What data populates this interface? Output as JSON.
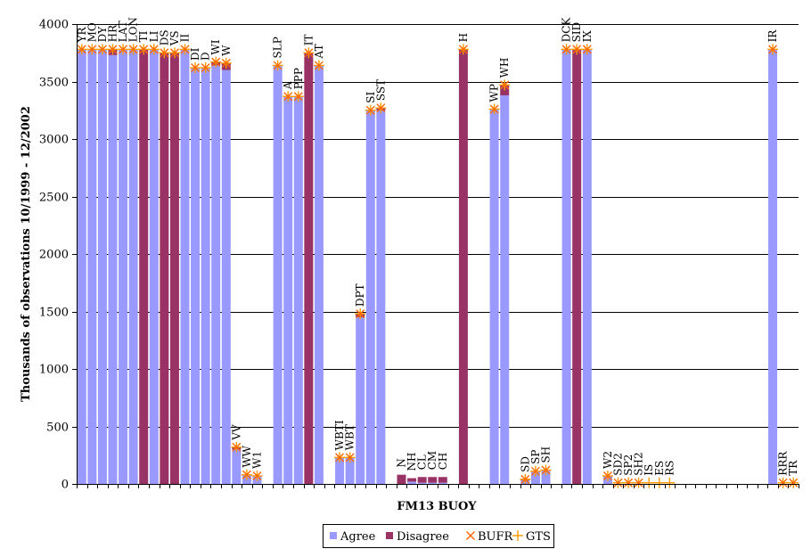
{
  "chart_data": {
    "type": "bar",
    "xlabel": "FM13 BUOY",
    "ylabel": "Thousands of observations 10/1999 - 12/2002",
    "ylim": [
      0,
      4000
    ],
    "yticks": [
      0,
      500,
      1000,
      1500,
      2000,
      2500,
      3000,
      3500,
      4000
    ],
    "grid": true,
    "legend_position": "bottom",
    "colors": {
      "agree": "#9999ff",
      "disagree": "#993366",
      "bufr": "#ff6600",
      "gts": "#ff9900"
    },
    "categories": [
      "YR",
      "MO",
      "DY",
      "HR",
      "LAT",
      "LON",
      "TI",
      "LI",
      "DS",
      "VS",
      "II",
      "DI",
      "D",
      "WI",
      "W",
      "VV",
      "WW",
      "W1",
      "",
      "SLP",
      "A",
      "PPP",
      "IT",
      "AT",
      "",
      "WBTI",
      "WBT",
      "DPT",
      "SI",
      "SST",
      "",
      "N",
      "NH",
      "CL",
      "CM",
      "CH",
      "",
      "H",
      "",
      "",
      "WP",
      "WH",
      "",
      "SD",
      "SP",
      "SH",
      "",
      "DCK",
      "SID",
      "IX",
      "",
      "W2",
      "SD2",
      "SP2",
      "SH2",
      "IS",
      "ES",
      "RS",
      "",
      "",
      "",
      "",
      "",
      "",
      "",
      "",
      "",
      "IR",
      "RRR",
      "TR"
    ],
    "series": [
      {
        "name": "Agree",
        "values": [
          3780,
          3780,
          3780,
          3730,
          3780,
          3780,
          0,
          3780,
          0,
          0,
          3780,
          3620,
          3620,
          3640,
          3600,
          300,
          80,
          70,
          0,
          3640,
          3370,
          3370,
          0,
          3640,
          0,
          230,
          230,
          1450,
          3250,
          3250,
          0,
          0,
          20,
          10,
          10,
          10,
          0,
          0,
          0,
          0,
          3260,
          3380,
          0,
          30,
          110,
          120,
          0,
          3780,
          0,
          3780,
          0,
          70,
          0,
          0,
          0,
          0,
          0,
          0,
          0,
          0,
          0,
          0,
          0,
          0,
          0,
          0,
          0,
          3780,
          0,
          0
        ]
      },
      {
        "name": "Disagree",
        "values": [
          0,
          0,
          0,
          50,
          0,
          0,
          3780,
          0,
          3750,
          3750,
          0,
          0,
          0,
          30,
          60,
          20,
          0,
          0,
          0,
          0,
          0,
          0,
          3750,
          0,
          0,
          0,
          0,
          30,
          0,
          20,
          0,
          80,
          30,
          50,
          50,
          50,
          0,
          3780,
          0,
          0,
          0,
          90,
          0,
          10,
          0,
          0,
          0,
          0,
          3780,
          0,
          0,
          0,
          0,
          0,
          0,
          0,
          0,
          0,
          0,
          0,
          0,
          0,
          0,
          0,
          0,
          0,
          0,
          0,
          0,
          0
        ]
      },
      {
        "name": "BUFR",
        "values": [
          3780,
          3780,
          3780,
          3780,
          3780,
          3780,
          3780,
          3780,
          3750,
          3750,
          3780,
          3620,
          3620,
          3670,
          3660,
          320,
          80,
          70,
          null,
          3640,
          3370,
          3370,
          3750,
          3640,
          null,
          230,
          230,
          1480,
          3250,
          3270,
          null,
          null,
          null,
          null,
          null,
          null,
          null,
          3780,
          null,
          null,
          3260,
          3470,
          null,
          40,
          110,
          120,
          null,
          3780,
          3780,
          3780,
          null,
          70,
          10,
          10,
          10,
          null,
          null,
          null,
          null,
          null,
          null,
          null,
          null,
          null,
          null,
          null,
          null,
          3780,
          10,
          10
        ]
      },
      {
        "name": "GTS",
        "values": [
          3780,
          3780,
          3780,
          3780,
          3780,
          3780,
          3780,
          3780,
          3750,
          3750,
          3780,
          3620,
          3620,
          3670,
          3660,
          320,
          80,
          70,
          null,
          3640,
          3370,
          3370,
          3750,
          3640,
          null,
          230,
          230,
          1480,
          3250,
          3270,
          null,
          null,
          null,
          null,
          null,
          null,
          null,
          3780,
          null,
          null,
          3260,
          3470,
          null,
          40,
          110,
          120,
          null,
          3780,
          3780,
          3780,
          null,
          70,
          10,
          10,
          10,
          10,
          10,
          10,
          null,
          null,
          null,
          null,
          null,
          null,
          null,
          null,
          null,
          3780,
          10,
          10
        ]
      }
    ]
  }
}
